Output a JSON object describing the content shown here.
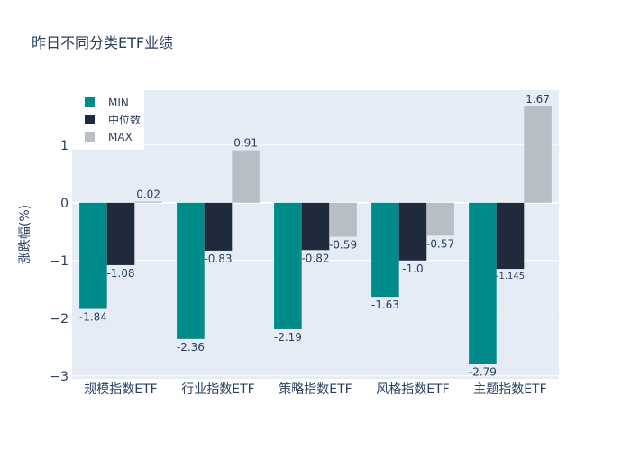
{
  "chart_data": {
    "type": "bar",
    "title": "昨日不同分类ETF业绩",
    "xlabel": "",
    "ylabel": "涨跌幅(%)",
    "ylim": [
      -3.05,
      1.95
    ],
    "yticks": [
      1,
      0,
      -1,
      -2,
      -3
    ],
    "ytick_labels": [
      "1",
      "0",
      "−1",
      "−2",
      "−3"
    ],
    "categories": [
      "规模指数ETF",
      "行业指数ETF",
      "策略指数ETF",
      "风格指数ETF",
      "主题指数ETF"
    ],
    "series": [
      {
        "name": "MIN",
        "color": "#008b8b",
        "values": [
          -1.84,
          -2.36,
          -2.19,
          -1.63,
          -2.79
        ],
        "labels": [
          "-1.84",
          "-2.36",
          "-2.19",
          "-1.63",
          "-2.79"
        ]
      },
      {
        "name": "中位数",
        "color": "#1f2a3d",
        "values": [
          -1.08,
          -0.83,
          -0.82,
          -1.0,
          -1.145
        ],
        "labels": [
          "-1.08",
          "-0.83",
          "-0.82",
          "-1.0",
          "-1.145"
        ]
      },
      {
        "name": "MAX",
        "color": "#b8bec6",
        "values": [
          0.02,
          0.91,
          -0.59,
          -0.57,
          1.67
        ],
        "labels": [
          "0.02",
          "0.91",
          "-0.59",
          "-0.57",
          "1.67"
        ]
      }
    ],
    "legend_position": "top-left",
    "grid": true,
    "plot_bg": "#e5ecf6"
  }
}
